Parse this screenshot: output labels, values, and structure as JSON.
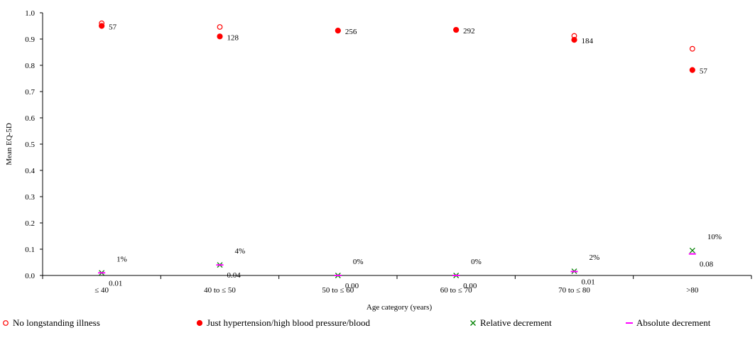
{
  "chart_data": {
    "type": "scatter",
    "title": "",
    "xlabel": "Age category (years)",
    "ylabel": "Mean EQ-5D",
    "ylim": [
      0,
      1
    ],
    "yticks": [
      "0.0",
      "0.1",
      "0.2",
      "0.3",
      "0.4",
      "0.5",
      "0.6",
      "0.7",
      "0.8",
      "0.9",
      "1.0"
    ],
    "categories": [
      "≤ 40",
      "40 to ≤ 50",
      "50 to ≤ 60",
      "60 to ≤ 70",
      "70 to ≤ 80",
      ">80"
    ],
    "grid": false,
    "legend_position": "bottom",
    "series": [
      {
        "name": "No longstanding illness",
        "marker": "open-circle",
        "color": "#ff0000",
        "values": [
          0.96,
          0.946,
          0.932,
          0.935,
          0.912,
          0.863
        ]
      },
      {
        "name": "Just hypertension/high blood pressure/blood",
        "marker": "filled-circle",
        "color": "#ff0000",
        "values": [
          0.95,
          0.91,
          0.932,
          0.935,
          0.897,
          0.782
        ],
        "labels": [
          "57",
          "128",
          "256",
          "292",
          "184",
          "57"
        ]
      },
      {
        "name": "Relative decrement",
        "marker": "x",
        "color": "#008000",
        "values": [
          0.01,
          0.04,
          0.0,
          0.0,
          0.016,
          0.095
        ],
        "labels": [
          "1%",
          "4%",
          "0%",
          "0%",
          "2%",
          "10%"
        ]
      },
      {
        "name": "Absolute decrement",
        "marker": "dash",
        "color": "#ff00ff",
        "values": [
          0.01,
          0.04,
          0.0,
          0.0,
          0.015,
          0.082
        ],
        "labels": [
          "0.01",
          "0.04",
          "0.00",
          "0.00",
          "0.01",
          "0.08"
        ]
      }
    ]
  }
}
